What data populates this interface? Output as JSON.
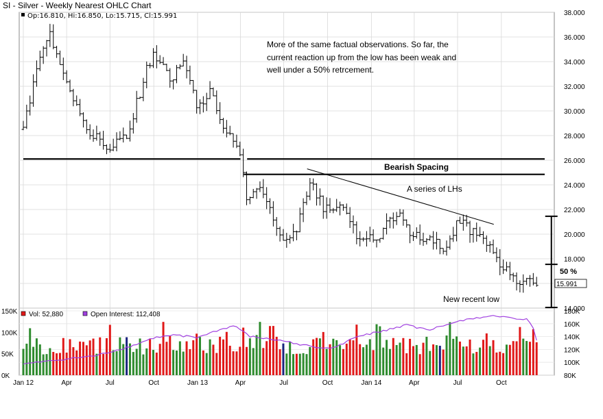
{
  "title": "SI - Silver - Weekly Nearest OHLC Chart",
  "price_legend": "Op:16.810, Hi:16.850, Lo:15.715, Cl:15.991",
  "last_price_label": "15.991",
  "vol_legend": "Vol: 52,880",
  "oi_legend": "Open Interest: 112,408",
  "colors": {
    "up_volume": "#2e8b2e",
    "down_volume": "#e01818",
    "open_interest": "#a040e0",
    "bars": "#000000",
    "accent_volume": "#1a237e"
  },
  "annotations": {
    "commentary": [
      "More of the same factual observations.  So far, the",
      "current reaction up from the low has been weak and",
      "well under a 50% retrcement."
    ],
    "bearish_spacing": "Bearish Spacing",
    "series_lhs": "A series of LHs",
    "new_low": "New recent low",
    "fifty_pct": "50 %"
  },
  "chart_data": [
    {
      "type": "ohlc",
      "title": "SI - Silver - Weekly Nearest OHLC Chart",
      "ylim": [
        14,
        38
      ],
      "y_ticks": [
        "38.000",
        "36.000",
        "34.000",
        "32.000",
        "30.000",
        "28.000",
        "26.000",
        "24.000",
        "22.000",
        "20.000",
        "18.000",
        "16.000",
        "14.000"
      ],
      "x_ticks": [
        "Jan 12",
        "Apr",
        "Jul",
        "Oct",
        "Jan 13",
        "Apr",
        "Jul",
        "Oct",
        "Jan 14",
        "Apr",
        "Jul",
        "Oct"
      ],
      "x_range": [
        "2012-01-01",
        "2014-12-31"
      ],
      "last": {
        "open": 16.81,
        "high": 16.85,
        "low": 15.715,
        "close": 15.991
      },
      "path_anchors": [
        {
          "date": "2012-01-01",
          "value": 28.5
        },
        {
          "date": "2012-01-30",
          "value": 33.5
        },
        {
          "date": "2012-02-27",
          "value": 36.2
        },
        {
          "date": "2012-04-02",
          "value": 32.0
        },
        {
          "date": "2012-05-14",
          "value": 28.5
        },
        {
          "date": "2012-06-25",
          "value": 27.0
        },
        {
          "date": "2012-08-06",
          "value": 28.0
        },
        {
          "date": "2012-09-17",
          "value": 33.5
        },
        {
          "date": "2012-10-01",
          "value": 34.8
        },
        {
          "date": "2012-11-05",
          "value": 32.5
        },
        {
          "date": "2012-12-03",
          "value": 33.8
        },
        {
          "date": "2012-12-31",
          "value": 30.5
        },
        {
          "date": "2013-01-28",
          "value": 31.5
        },
        {
          "date": "2013-02-25",
          "value": 28.8
        },
        {
          "date": "2013-03-25",
          "value": 27.5
        },
        {
          "date": "2013-04-15",
          "value": 23.0
        },
        {
          "date": "2013-05-06",
          "value": 24.0
        },
        {
          "date": "2013-06-10",
          "value": 21.5
        },
        {
          "date": "2013-06-24",
          "value": 19.5
        },
        {
          "date": "2013-07-22",
          "value": 19.8
        },
        {
          "date": "2013-08-26",
          "value": 24.3
        },
        {
          "date": "2013-09-23",
          "value": 22.0
        },
        {
          "date": "2013-10-28",
          "value": 22.5
        },
        {
          "date": "2013-12-09",
          "value": 19.5
        },
        {
          "date": "2014-01-20",
          "value": 20.0
        },
        {
          "date": "2014-02-24",
          "value": 21.8
        },
        {
          "date": "2014-03-24",
          "value": 20.0
        },
        {
          "date": "2014-05-12",
          "value": 19.3
        },
        {
          "date": "2014-06-02",
          "value": 19.0
        },
        {
          "date": "2014-07-07",
          "value": 21.2
        },
        {
          "date": "2014-08-04",
          "value": 20.0
        },
        {
          "date": "2014-09-01",
          "value": 19.0
        },
        {
          "date": "2014-10-06",
          "value": 17.2
        },
        {
          "date": "2014-11-03",
          "value": 15.8
        },
        {
          "date": "2014-11-24",
          "value": 16.2
        },
        {
          "date": "2014-12-15",
          "value": 15.99
        }
      ],
      "horizontal_lines": [
        {
          "value": 26.1,
          "from": "2012-01-01",
          "to": "2013-04-01"
        },
        {
          "value": 26.1,
          "from": "2013-04-15",
          "to": "2014-12-31"
        },
        {
          "value": 24.85,
          "from": "2013-04-08",
          "to": "2014-12-31"
        }
      ],
      "trendline": {
        "from": {
          "date": "2013-08-19",
          "value": 25.3
        },
        "to": {
          "date": "2014-09-15",
          "value": 20.8
        }
      },
      "range_bracket": {
        "date": "2014-12-22",
        "top": 21.45,
        "mid": 17.55,
        "bottom": 14.05
      }
    },
    {
      "type": "bar",
      "series": [
        {
          "name": "Vol",
          "last": 52880
        },
        {
          "name": "Open Interest",
          "last": 112408
        }
      ],
      "ylim_left": [
        0,
        150000
      ],
      "y_ticks_left": [
        "150K",
        "100K",
        "50K",
        "0K"
      ],
      "ylim_right": [
        80000,
        180000
      ],
      "y_ticks_right": [
        "180K",
        "160K",
        "140K",
        "120K",
        "100K",
        "80K"
      ],
      "volume_seed": 12,
      "volume_base": 48000,
      "oi_anchors": [
        {
          "date": "2012-01-01",
          "value": 97000
        },
        {
          "date": "2012-04-01",
          "value": 105000
        },
        {
          "date": "2012-06-01",
          "value": 110000
        },
        {
          "date": "2012-08-15",
          "value": 125000
        },
        {
          "date": "2012-10-01",
          "value": 138000
        },
        {
          "date": "2012-11-15",
          "value": 142000
        },
        {
          "date": "2013-01-01",
          "value": 139000
        },
        {
          "date": "2013-02-15",
          "value": 150000
        },
        {
          "date": "2013-03-20",
          "value": 157000
        },
        {
          "date": "2013-04-20",
          "value": 140000
        },
        {
          "date": "2013-07-01",
          "value": 133000
        },
        {
          "date": "2013-09-01",
          "value": 124000
        },
        {
          "date": "2013-10-15",
          "value": 122000
        },
        {
          "date": "2013-12-01",
          "value": 140000
        },
        {
          "date": "2014-02-01",
          "value": 150000
        },
        {
          "date": "2014-03-15",
          "value": 158000
        },
        {
          "date": "2014-05-01",
          "value": 150000
        },
        {
          "date": "2014-06-15",
          "value": 160000
        },
        {
          "date": "2014-08-01",
          "value": 168000
        },
        {
          "date": "2014-09-15",
          "value": 173000
        },
        {
          "date": "2014-11-15",
          "value": 165000
        },
        {
          "date": "2014-11-25",
          "value": 167000
        },
        {
          "date": "2014-12-10",
          "value": 150000
        },
        {
          "date": "2014-12-20",
          "value": 112408
        }
      ]
    }
  ]
}
